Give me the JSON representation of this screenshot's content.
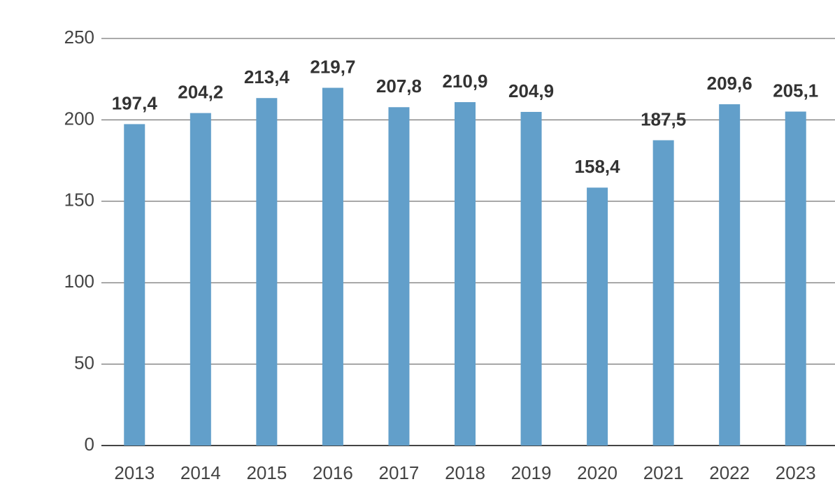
{
  "chart_data": {
    "type": "bar",
    "categories": [
      "2013",
      "2014",
      "2015",
      "2016",
      "2017",
      "2018",
      "2019",
      "2020",
      "2021",
      "2022",
      "2023"
    ],
    "values": [
      197.4,
      204.2,
      213.4,
      219.7,
      207.8,
      210.9,
      204.9,
      158.4,
      187.5,
      209.6,
      205.1
    ],
    "value_labels": [
      "197,4",
      "204,2",
      "213,4",
      "219,7",
      "207,8",
      "210,9",
      "204,9",
      "158,4",
      "187,5",
      "209,6",
      "205,1"
    ],
    "color": "#629fca",
    "ylim": [
      0,
      250
    ],
    "yticks": [
      0,
      50,
      100,
      150,
      200,
      250
    ],
    "grid": true
  }
}
